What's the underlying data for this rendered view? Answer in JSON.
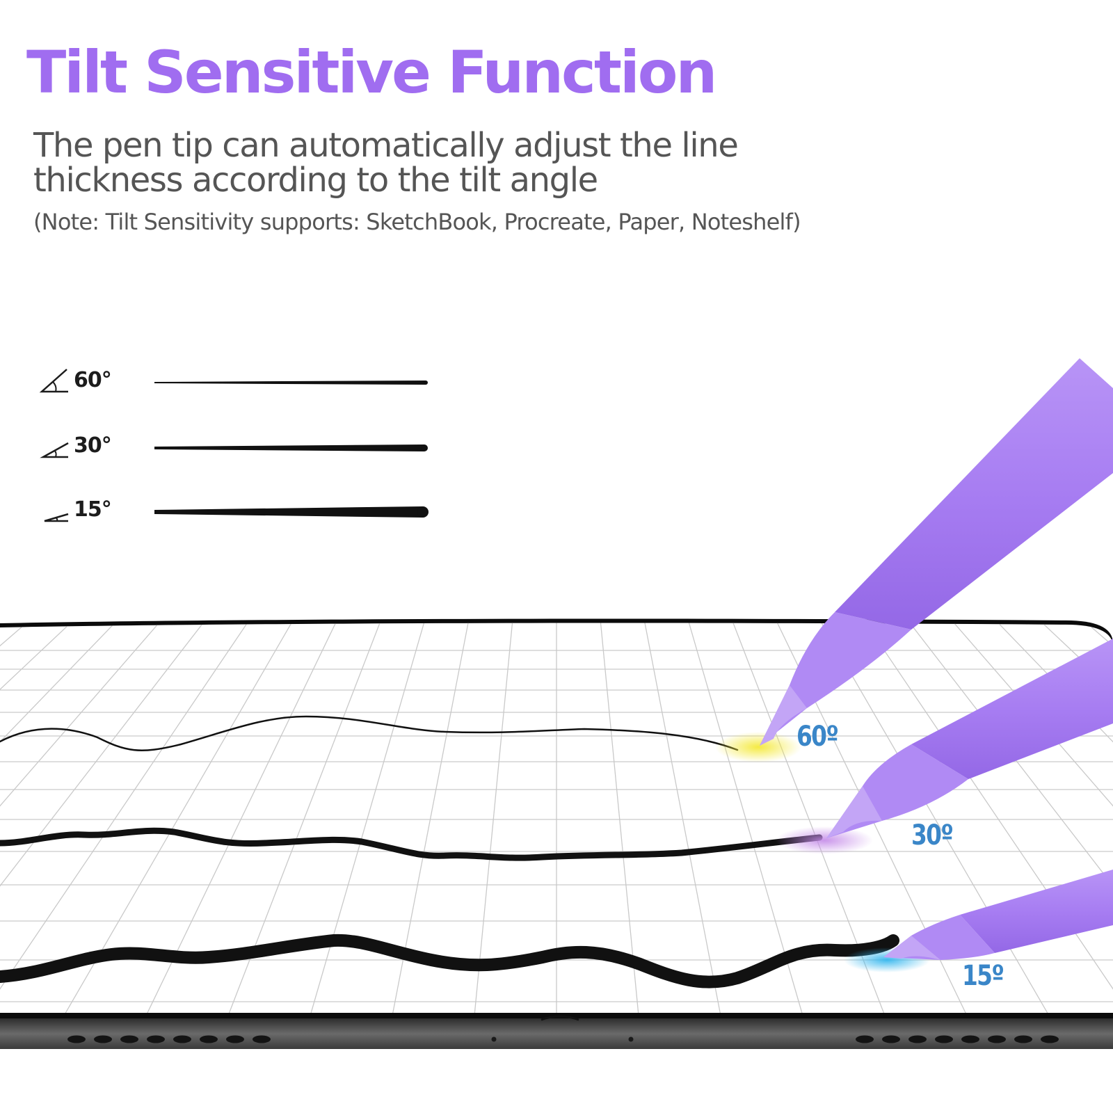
{
  "header": {
    "title": "Tilt Sensitive Function",
    "subtitle": "The pen tip can automatically adjust the line thickness according to the tilt angle",
    "note": "(Note: Tilt Sensitivity supports: SketchBook, Procreate, Paper, Noteshelf)"
  },
  "legend": [
    {
      "angle": "60°",
      "icon": "angle-60-icon"
    },
    {
      "angle": "30°",
      "icon": "angle-30-icon"
    },
    {
      "angle": "15°",
      "icon": "angle-15-icon"
    }
  ],
  "tablet": {
    "pens": [
      {
        "angle_label": "60º",
        "glow_color": "#f4e93a"
      },
      {
        "angle_label": "30º",
        "glow_color": "#c48ae8"
      },
      {
        "angle_label": "15º",
        "glow_color": "#35b7ee"
      }
    ],
    "pen_color": "#a77df2",
    "label_color": "#3a86c8"
  },
  "colors": {
    "title": "#a06df0",
    "text": "#555555",
    "ink": "#111111"
  }
}
